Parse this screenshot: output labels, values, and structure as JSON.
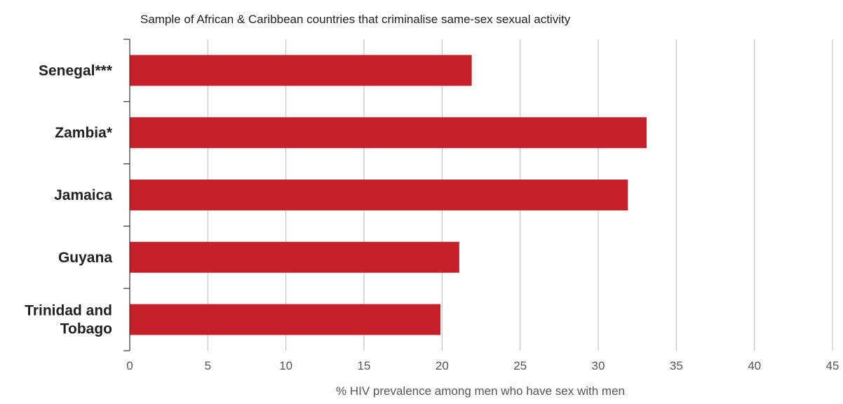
{
  "chart_data": {
    "type": "bar",
    "orientation": "horizontal",
    "title": "Sample of African & Caribbean countries that criminalise same-sex sexual activity",
    "xlabel": "% HIV prevalence among men who have sex with men",
    "ylabel": "",
    "categories": [
      [
        "Senegal***"
      ],
      [
        "Zambia*"
      ],
      [
        "Jamaica"
      ],
      [
        "Guyana"
      ],
      [
        "Trinidad and",
        "Tobago"
      ]
    ],
    "values": [
      21.9,
      33.1,
      31.9,
      21.1,
      19.9
    ],
    "xlim": [
      0,
      45
    ],
    "xticks": [
      0,
      5,
      10,
      15,
      20,
      25,
      30,
      35,
      40,
      45
    ],
    "grid": "vertical",
    "legend": "none",
    "colors": {
      "bar": "#c8202a",
      "grid": "#b8b8b8",
      "axis": "#333333",
      "text": "#222222"
    }
  }
}
